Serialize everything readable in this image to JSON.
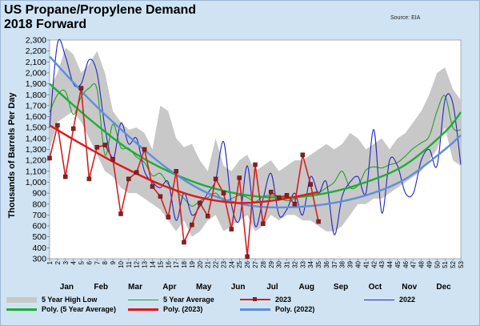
{
  "chart_data": {
    "type": "line",
    "title": "US Propane/Propylene Demand",
    "subtitle": "2018 Forward",
    "source": "Source: EIA",
    "ylabel": "Thousands of Barrels Per Day",
    "ylim": [
      300,
      2300
    ],
    "yticks": [
      300,
      400,
      500,
      600,
      700,
      800,
      900,
      1000,
      1100,
      1200,
      1300,
      1400,
      1500,
      1600,
      1700,
      1800,
      1900,
      2000,
      2100,
      2200,
      2300
    ],
    "xlim": [
      1,
      53
    ],
    "week_labels": [
      "1",
      "2",
      "3",
      "4",
      "5",
      "6",
      "7",
      "8",
      "9",
      "10",
      "11",
      "12",
      "13",
      "14",
      "15",
      "16",
      "17",
      "18",
      "19",
      "20",
      "21",
      "22",
      "23",
      "24",
      "25",
      "26",
      "27",
      "28",
      "29",
      "30",
      "31",
      "32",
      "33",
      "34",
      "35",
      "36",
      "37",
      "38",
      "39",
      "40",
      "41",
      "42",
      "43",
      "44",
      "45",
      "46",
      "47",
      "48",
      "49",
      "50",
      "51",
      "52",
      "53"
    ],
    "months": [
      "Jan",
      "Feb",
      "Mar",
      "Apr",
      "May",
      "Jun",
      "Jul",
      "Aug",
      "Sep",
      "Oct",
      "Nov",
      "Dec"
    ],
    "band": {
      "name": "5 Year High Low",
      "x": [
        1,
        2,
        3,
        4,
        5,
        6,
        7,
        8,
        9,
        10,
        11,
        12,
        13,
        14,
        15,
        16,
        17,
        18,
        19,
        20,
        21,
        22,
        23,
        24,
        25,
        26,
        27,
        28,
        29,
        30,
        31,
        32,
        33,
        34,
        35,
        36,
        37,
        38,
        39,
        40,
        41,
        42,
        43,
        44,
        45,
        46,
        47,
        48,
        49,
        50,
        51,
        52,
        53
      ],
      "high": [
        1850,
        2000,
        2230,
        2170,
        2000,
        2080,
        2200,
        2000,
        1650,
        1550,
        1480,
        1500,
        1450,
        1300,
        1700,
        1650,
        1400,
        1320,
        1350,
        1200,
        1100,
        1400,
        1150,
        1100,
        1200,
        1250,
        1100,
        1150,
        1200,
        1100,
        1150,
        1200,
        1200,
        1250,
        1300,
        1350,
        1300,
        1350,
        1450,
        1400,
        1300,
        1350,
        1400,
        1300,
        1400,
        1450,
        1550,
        1650,
        1800,
        2000,
        2050,
        1850,
        1750
      ],
      "low": [
        1300,
        1550,
        1600,
        1650,
        1550,
        1400,
        1250,
        1100,
        1050,
        950,
        900,
        900,
        850,
        800,
        750,
        650,
        550,
        650,
        500,
        550,
        650,
        700,
        550,
        600,
        650,
        700,
        550,
        600,
        700,
        650,
        700,
        700,
        650,
        650,
        600,
        550,
        550,
        600,
        700,
        800,
        800,
        850,
        850,
        900,
        950,
        1000,
        1050,
        1100,
        1200,
        1300,
        1500,
        1200,
        1150
      ]
    },
    "series": [
      {
        "name": "5 Year Average",
        "color": "#22a02a",
        "x": [
          1,
          2,
          3,
          4,
          5,
          6,
          7,
          8,
          9,
          10,
          11,
          12,
          13,
          14,
          15,
          16,
          17,
          18,
          19,
          20,
          21,
          22,
          23,
          24,
          25,
          26,
          27,
          28,
          29,
          30,
          31,
          32,
          33,
          34,
          35,
          36,
          37,
          38,
          39,
          40,
          41,
          42,
          43,
          44,
          45,
          46,
          47,
          48,
          49,
          50,
          51,
          52,
          53
        ],
        "y": [
          1640,
          1800,
          1830,
          1620,
          1780,
          1860,
          1850,
          1250,
          1530,
          1320,
          1310,
          1230,
          1180,
          1060,
          1080,
          980,
          920,
          850,
          780,
          830,
          860,
          900,
          830,
          850,
          880,
          860,
          820,
          870,
          880,
          860,
          830,
          850,
          880,
          870,
          900,
          950,
          1000,
          1100,
          950,
          970,
          1110,
          1140,
          1130,
          1160,
          1180,
          1240,
          1310,
          1360,
          1420,
          1650,
          1790,
          1500,
          1480
        ]
      },
      {
        "name": "2023",
        "color": "#d42020",
        "marker": "#8b1e1e",
        "x": [
          1,
          2,
          3,
          4,
          5,
          6,
          7,
          8,
          9,
          10,
          11,
          12,
          13,
          14,
          15,
          16,
          17,
          18,
          19,
          20,
          21,
          22,
          23,
          24,
          25,
          26,
          27,
          28,
          29,
          30,
          31,
          32,
          33,
          34,
          35
        ],
        "y": [
          1220,
          1520,
          1050,
          1490,
          1860,
          1030,
          1320,
          1340,
          1210,
          710,
          1030,
          1090,
          1300,
          960,
          870,
          680,
          1100,
          450,
          610,
          810,
          690,
          1030,
          900,
          570,
          1040,
          320,
          1160,
          620,
          910,
          860,
          880,
          800,
          1250,
          980,
          640
        ]
      },
      {
        "name": "2022",
        "color": "#2424c4",
        "x": [
          1,
          2,
          3,
          4,
          5,
          6,
          7,
          8,
          9,
          10,
          11,
          12,
          13,
          14,
          15,
          16,
          17,
          18,
          19,
          20,
          21,
          22,
          23,
          24,
          25,
          26,
          27,
          28,
          29,
          30,
          31,
          32,
          33,
          34,
          35,
          36,
          37,
          38,
          39,
          40,
          41,
          42,
          43,
          44,
          45,
          46,
          47,
          48,
          49,
          50,
          51,
          52,
          53
        ],
        "y": [
          1500,
          2270,
          2150,
          1900,
          1900,
          2120,
          2000,
          1500,
          1200,
          1540,
          1350,
          1400,
          1100,
          1000,
          950,
          1000,
          650,
          900,
          700,
          780,
          900,
          1020,
          1370,
          800,
          650,
          1150,
          600,
          850,
          1080,
          700,
          750,
          900,
          700,
          1050,
          900,
          1000,
          520,
          870,
          1000,
          1050,
          900,
          1480,
          720,
          1200,
          1150,
          900,
          900,
          1200,
          1300,
          1150,
          1750,
          1720,
          1160
        ]
      },
      {
        "name": "Poly. (5 Year Average)",
        "color": "#1cae34",
        "x": [
          1,
          6,
          11,
          16,
          21,
          26,
          31,
          36,
          41,
          46,
          51,
          53
        ],
        "y": [
          1900,
          1580,
          1300,
          1100,
          960,
          880,
          860,
          900,
          1000,
          1160,
          1460,
          1640
        ]
      },
      {
        "name": "Poly. (2023)",
        "color": "#e01818",
        "x": [
          1,
          5,
          10,
          15,
          20,
          25,
          30,
          35
        ],
        "y": [
          1520,
          1350,
          1150,
          980,
          860,
          810,
          840,
          910
        ]
      },
      {
        "name": "Poly. (2022)",
        "color": "#5b8fde",
        "x": [
          1,
          6,
          11,
          16,
          21,
          26,
          31,
          36,
          41,
          46,
          51,
          53
        ],
        "y": [
          2150,
          1760,
          1420,
          1120,
          900,
          790,
          770,
          800,
          880,
          1030,
          1300,
          1430
        ]
      }
    ],
    "legend": [
      {
        "label": "5 Year High Low",
        "kind": "band"
      },
      {
        "label": "5 Year Average",
        "kind": "thin",
        "color": "#22a02a"
      },
      {
        "label": "2023",
        "kind": "marker",
        "color": "#d42020"
      },
      {
        "label": "2022",
        "kind": "thin",
        "color": "#2424c4"
      },
      {
        "label": "Poly. (5 Year Average)",
        "kind": "thick",
        "color": "#1cae34"
      },
      {
        "label": "Poly. (2023)",
        "kind": "thick",
        "color": "#e01818"
      },
      {
        "label": "Poly. (2022)",
        "kind": "thick",
        "color": "#5b8fde"
      }
    ],
    "legend_placement": "bottom",
    "grid": false
  }
}
